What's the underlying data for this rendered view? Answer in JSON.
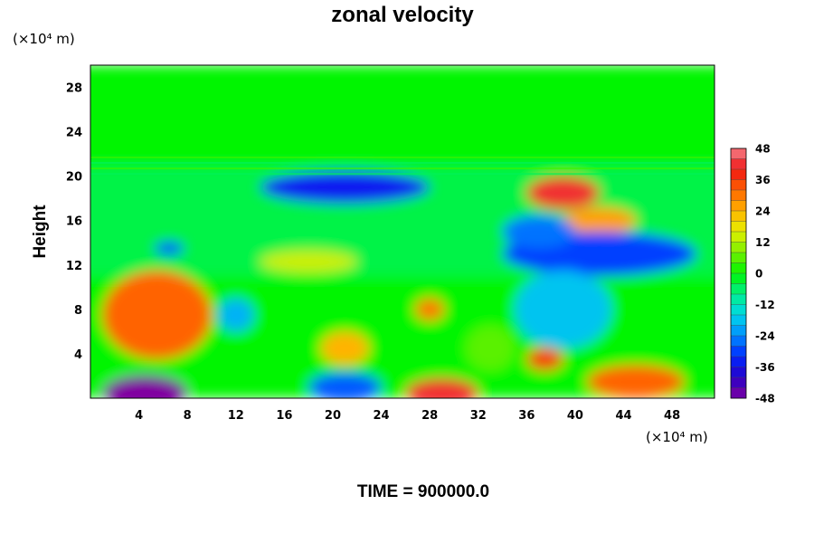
{
  "chart_data": {
    "type": "heatmap",
    "title": "zonal velocity",
    "ylabel": "Height",
    "xunit": "(×10⁴ m)",
    "yunit": "(×10⁴ m)",
    "xlim": [
      0,
      51.5
    ],
    "ylim": [
      0,
      30
    ],
    "x_ticks": [
      "4",
      "8",
      "12",
      "16",
      "20",
      "24",
      "28",
      "32",
      "36",
      "40",
      "44",
      "48"
    ],
    "y_ticks": [
      "4",
      "8",
      "12",
      "16",
      "20",
      "24",
      "28"
    ],
    "colorbar": {
      "range": [
        -48,
        48
      ],
      "step": 4,
      "labels": [
        "48",
        "36",
        "24",
        "12",
        "0",
        "-12",
        "-24",
        "-36",
        "-48"
      ]
    },
    "footer": "TIME = 900000.0",
    "features": [
      {
        "kind": "background",
        "y": [
          0,
          30
        ],
        "value": 0
      },
      {
        "kind": "band",
        "y": [
          11,
          21
        ],
        "value": -4
      },
      {
        "kind": "blob",
        "x": 5.5,
        "y": 7.5,
        "rx": 4.5,
        "ry": 4,
        "value": 32
      },
      {
        "kind": "blob",
        "x": 4.5,
        "y": 0.5,
        "rx": 3.5,
        "ry": 1.6,
        "value": -48
      },
      {
        "kind": "blob",
        "x": 21,
        "y": 19,
        "rx": 7,
        "ry": 1.5,
        "value": -34
      },
      {
        "kind": "blob",
        "x": 39,
        "y": 18.5,
        "rx": 3,
        "ry": 1.5,
        "value": 42
      },
      {
        "kind": "blob",
        "x": 42,
        "y": 16,
        "rx": 3,
        "ry": 1.2,
        "value": 26
      },
      {
        "kind": "blob",
        "x": 42,
        "y": 13,
        "rx": 8,
        "ry": 2,
        "value": -30
      },
      {
        "kind": "blob",
        "x": 29,
        "y": 0.5,
        "rx": 3,
        "ry": 1.3,
        "value": 42
      },
      {
        "kind": "blob",
        "x": 45,
        "y": 1.5,
        "rx": 4,
        "ry": 1.5,
        "value": 32
      },
      {
        "kind": "blob",
        "x": 21,
        "y": 4.5,
        "rx": 2,
        "ry": 1.5,
        "value": 24
      },
      {
        "kind": "blob",
        "x": 21,
        "y": 1,
        "rx": 3,
        "ry": 1.3,
        "value": -28
      },
      {
        "kind": "blob",
        "x": 39,
        "y": 8,
        "rx": 4,
        "ry": 3.5,
        "value": -18
      },
      {
        "kind": "blob",
        "x": 28,
        "y": 8,
        "rx": 1.2,
        "ry": 1,
        "value": 30
      },
      {
        "kind": "blob",
        "x": 37.5,
        "y": 3.5,
        "rx": 1.5,
        "ry": 1,
        "value": 36
      },
      {
        "kind": "blob",
        "x": 12,
        "y": 7.5,
        "rx": 1.5,
        "ry": 1.5,
        "value": -20
      },
      {
        "kind": "blob",
        "x": 18,
        "y": 12.3,
        "rx": 4,
        "ry": 1,
        "value": 14
      },
      {
        "kind": "blob",
        "x": 33,
        "y": 4.5,
        "rx": 2,
        "ry": 2,
        "value": 6
      },
      {
        "kind": "blob",
        "x": 6.5,
        "y": 13.5,
        "rx": 1.2,
        "ry": 0.6,
        "value": -30
      },
      {
        "kind": "blob",
        "x": 37,
        "y": 15,
        "rx": 3,
        "ry": 1.5,
        "value": -26
      }
    ]
  }
}
